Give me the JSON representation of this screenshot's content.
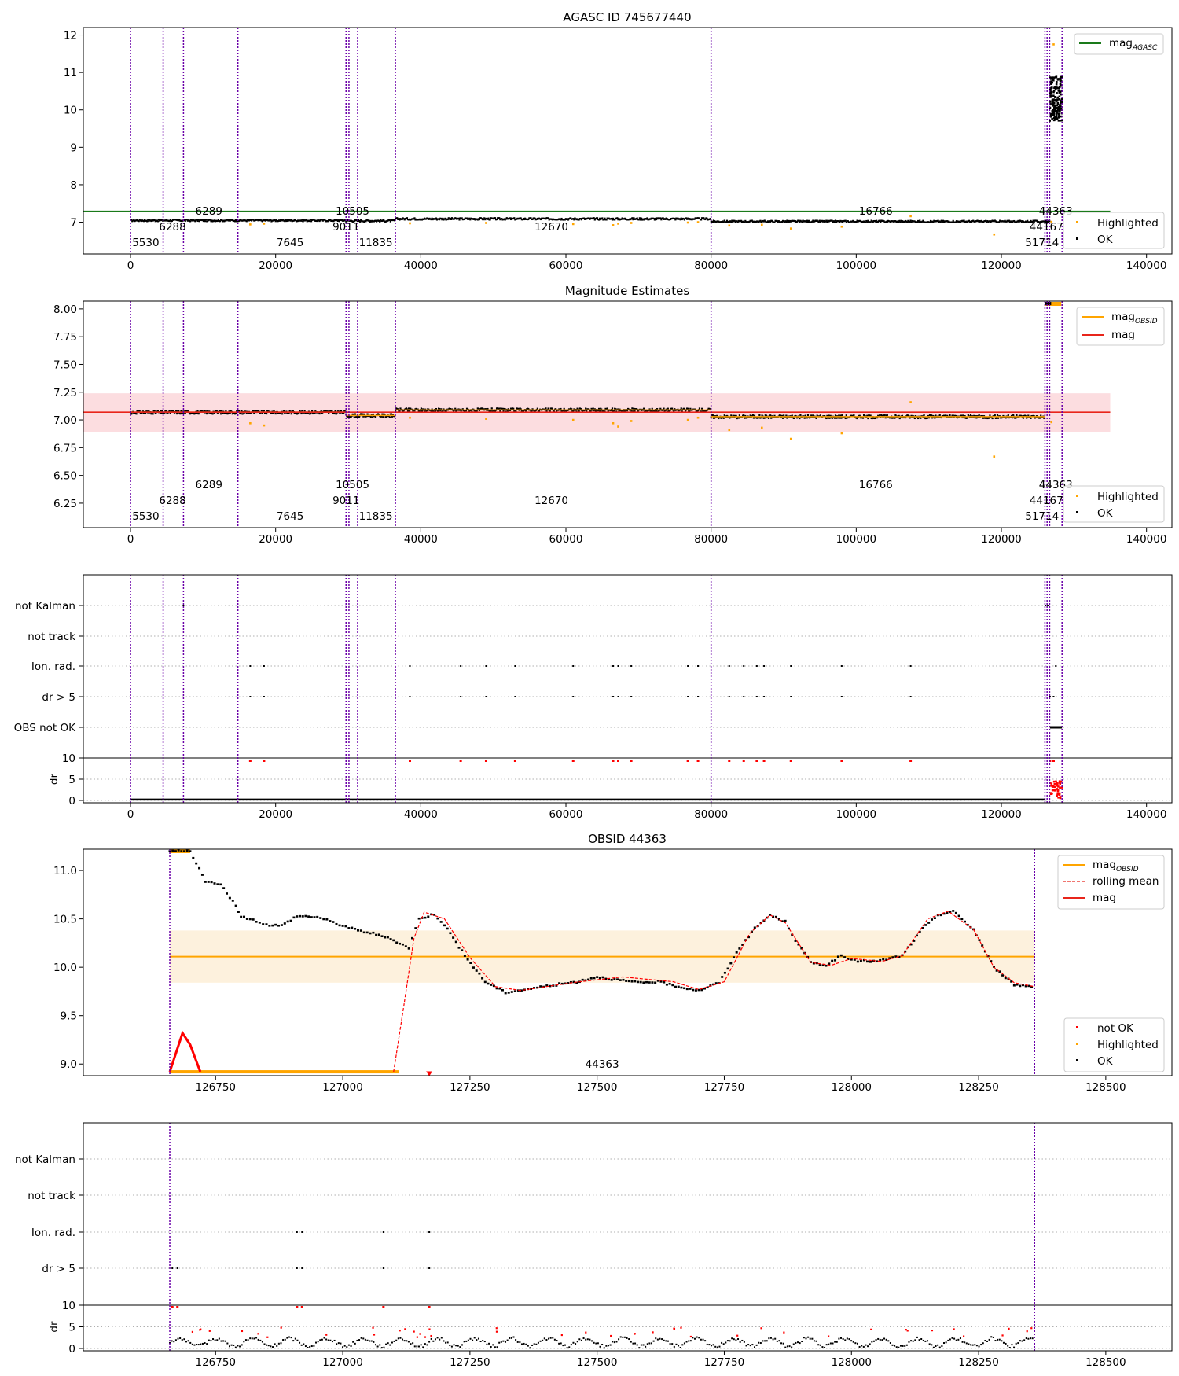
{
  "figure": {
    "background": "#ffffff"
  },
  "colors": {
    "ok": "#000000",
    "highlighted": "#ffa500",
    "not_ok": "#ff0000",
    "agasc": "#1a7a1a",
    "mag": "#e8251b",
    "band": "#fbd4d8",
    "obsid_band": "#fdefd9",
    "vline": "#6a00a8",
    "grid": "#b0b0b0"
  },
  "chart_data": [
    {
      "type": "scatter",
      "title": "AGASC ID 745677440",
      "xlim": [
        -6500,
        143500
      ],
      "ylim": [
        6.15,
        12.2
      ],
      "xticks": [
        0,
        20000,
        40000,
        60000,
        80000,
        100000,
        120000,
        140000
      ],
      "yticks": [
        7,
        8,
        9,
        10,
        11,
        12
      ],
      "obsid_boundaries": [
        0,
        4500,
        7300,
        14800,
        29700,
        30100,
        31300,
        36500,
        80000,
        126000,
        126300,
        126650,
        128360
      ],
      "obsid_labels": [
        {
          "text": "5530",
          "x": 2100,
          "row": 2
        },
        {
          "text": "6288",
          "x": 5800,
          "row": 1
        },
        {
          "text": "6289",
          "x": 10800,
          "row": 0
        },
        {
          "text": "7645",
          "x": 22000,
          "row": 2
        },
        {
          "text": "9011",
          "x": 29700,
          "row": 1
        },
        {
          "text": "10505",
          "x": 30600,
          "row": 0
        },
        {
          "text": "11835",
          "x": 33800,
          "row": 2
        },
        {
          "text": "12670",
          "x": 58000,
          "row": 1
        },
        {
          "text": "16766",
          "x": 102700,
          "row": 0
        },
        {
          "text": "44167",
          "x": 126200,
          "row": 1
        },
        {
          "text": "51714",
          "x": 125600,
          "row": 2
        },
        {
          "text": "44363",
          "x": 127500,
          "row": 0
        }
      ],
      "segments": [
        {
          "x0": 0,
          "x1": 29700,
          "y": 7.05,
          "n": 260
        },
        {
          "x0": 29700,
          "x1": 36500,
          "y": 7.04,
          "n": 60
        },
        {
          "x0": 36500,
          "x1": 80000,
          "y": 7.09,
          "n": 380
        },
        {
          "x0": 80000,
          "x1": 126000,
          "y": 7.02,
          "n": 400
        },
        {
          "x0": 126000,
          "x1": 126650,
          "y": 7.02,
          "n": 20
        }
      ],
      "cluster": {
        "x0": 126650,
        "x1": 128360,
        "y0": 9.7,
        "y1": 10.9,
        "n": 160
      },
      "highlighted_points": [
        [
          16500,
          6.94
        ],
        [
          18400,
          6.96
        ],
        [
          38500,
          6.97
        ],
        [
          49000,
          6.98
        ],
        [
          61000,
          6.95
        ],
        [
          66500,
          6.92
        ],
        [
          67200,
          6.96
        ],
        [
          69000,
          6.98
        ],
        [
          76800,
          6.99
        ],
        [
          78200,
          7.0
        ],
        [
          82500,
          6.91
        ],
        [
          87000,
          6.93
        ],
        [
          91000,
          6.83
        ],
        [
          98000,
          6.88
        ],
        [
          107500,
          7.16
        ],
        [
          119000,
          6.67
        ],
        [
          126900,
          7.01
        ],
        [
          127200,
          11.75
        ]
      ],
      "agasc_mag": 7.29,
      "legend": [
        {
          "label": "mag",
          "subscript": "AGASC",
          "kind": "line"
        }
      ],
      "legend_points": [
        {
          "label": "Highlighted"
        },
        {
          "label": "OK"
        }
      ]
    },
    {
      "type": "scatter",
      "title": "Magnitude Estimates",
      "xlim": [
        -6500,
        143500
      ],
      "ylim": [
        6.03,
        8.07
      ],
      "xticks": [
        0,
        20000,
        40000,
        60000,
        80000,
        100000,
        120000,
        140000
      ],
      "yticks": [
        6.25,
        6.5,
        6.75,
        7.0,
        7.25,
        7.5,
        7.75,
        8.0
      ],
      "mag": 7.07,
      "mag_band": [
        6.89,
        7.24
      ],
      "segments": [
        {
          "x0": 0,
          "x1": 29700,
          "y": 7.07,
          "n": 260
        },
        {
          "x0": 29700,
          "x1": 36500,
          "y": 7.04,
          "n": 60
        },
        {
          "x0": 36500,
          "x1": 80000,
          "y": 7.09,
          "n": 380
        },
        {
          "x0": 80000,
          "x1": 126000,
          "y": 7.03,
          "n": 400
        }
      ],
      "highlighted_points": [
        [
          16500,
          6.97
        ],
        [
          18400,
          6.95
        ],
        [
          38500,
          7.02
        ],
        [
          49000,
          7.01
        ],
        [
          61000,
          7.0
        ],
        [
          66500,
          6.97
        ],
        [
          67200,
          6.94
        ],
        [
          69000,
          6.99
        ],
        [
          76800,
          7.0
        ],
        [
          78200,
          7.02
        ],
        [
          82500,
          6.91
        ],
        [
          87000,
          6.93
        ],
        [
          91000,
          6.83
        ],
        [
          98000,
          6.88
        ],
        [
          107500,
          7.16
        ],
        [
          119000,
          6.67
        ],
        [
          126900,
          6.98
        ]
      ],
      "legend": [
        {
          "label": "mag",
          "subscript": "OBSID",
          "kind": "line"
        },
        {
          "label": "mag",
          "kind": "line"
        }
      ],
      "legend_points": [
        {
          "label": "Highlighted"
        },
        {
          "label": "OK"
        }
      ]
    },
    {
      "type": "scatter",
      "title": "",
      "xlim": [
        -6500,
        143500
      ],
      "xticks": [
        0,
        20000,
        40000,
        60000,
        80000,
        100000,
        120000,
        140000
      ],
      "flag_rows": [
        "not Kalman",
        "not track",
        "Ion. rad.",
        "dr > 5",
        "OBS not OK"
      ],
      "flag_points": {
        "not Kalman": [
          7300,
          126100,
          126400
        ],
        "Ion. rad.": [
          16500,
          18400,
          38500,
          45500,
          49000,
          53000,
          61000,
          66500,
          67200,
          69000,
          76800,
          78200,
          82500,
          84500,
          86300,
          87300,
          91000,
          98000,
          107500,
          127500
        ],
        "dr > 5": [
          16500,
          18400,
          38500,
          45500,
          49000,
          53000,
          61000,
          66500,
          67200,
          69000,
          76800,
          78200,
          82500,
          84500,
          86300,
          87300,
          91000,
          98000,
          107500,
          126700,
          127200
        ]
      },
      "obs_not_ok_range": [
        126700,
        128360
      ],
      "dr_ylabel": "dr",
      "dr_top_tick": "10",
      "dr_yticks": [
        "5",
        "0"
      ]
    },
    {
      "type": "line",
      "title": "OBSID 44363",
      "xlim": [
        126490,
        128630
      ],
      "ylim": [
        8.88,
        11.22
      ],
      "xticks": [
        126750,
        127000,
        127250,
        127500,
        127750,
        128000,
        128250,
        128500
      ],
      "yticks": [
        9.0,
        9.5,
        10.0,
        10.5,
        11.0
      ],
      "mag_obsid": 10.11,
      "band": [
        9.84,
        10.38
      ],
      "obsid_label": "44363",
      "mag_curve": [
        [
          126660,
          11.2
        ],
        [
          126700,
          11.2
        ],
        [
          126730,
          10.89
        ],
        [
          126760,
          10.85
        ],
        [
          126790,
          10.64
        ],
        [
          126800,
          10.52
        ],
        [
          126830,
          10.48
        ],
        [
          126850,
          10.44
        ],
        [
          126880,
          10.43
        ],
        [
          126910,
          10.53
        ],
        [
          126950,
          10.52
        ],
        [
          127000,
          10.43
        ],
        [
          127030,
          10.38
        ],
        [
          127060,
          10.35
        ],
        [
          127100,
          10.28
        ],
        [
          127130,
          10.2
        ],
        [
          127150,
          10.5
        ],
        [
          127180,
          10.55
        ],
        [
          127200,
          10.44
        ],
        [
          127240,
          10.12
        ],
        [
          127280,
          9.85
        ],
        [
          127320,
          9.74
        ],
        [
          127370,
          9.78
        ],
        [
          127420,
          9.82
        ],
        [
          127460,
          9.85
        ],
        [
          127500,
          9.9
        ],
        [
          127540,
          9.87
        ],
        [
          127580,
          9.84
        ],
        [
          127620,
          9.85
        ],
        [
          127660,
          9.8
        ],
        [
          127700,
          9.76
        ],
        [
          127740,
          9.84
        ],
        [
          127780,
          10.2
        ],
        [
          127810,
          10.4
        ],
        [
          127840,
          10.54
        ],
        [
          127870,
          10.47
        ],
        [
          127890,
          10.28
        ],
        [
          127920,
          10.05
        ],
        [
          127950,
          10.02
        ],
        [
          127980,
          10.12
        ],
        [
          128000,
          10.07
        ],
        [
          128050,
          10.06
        ],
        [
          128100,
          10.12
        ],
        [
          128140,
          10.4
        ],
        [
          128170,
          10.54
        ],
        [
          128200,
          10.58
        ],
        [
          128240,
          10.39
        ],
        [
          128280,
          10.0
        ],
        [
          128320,
          9.82
        ],
        [
          128360,
          9.8
        ]
      ],
      "rolling_mean": [
        [
          127100,
          8.92
        ],
        [
          127120,
          9.6
        ],
        [
          127140,
          10.3
        ],
        [
          127160,
          10.57
        ],
        [
          127200,
          10.5
        ],
        [
          127250,
          10.1
        ],
        [
          127300,
          9.8
        ],
        [
          127350,
          9.76
        ],
        [
          127450,
          9.84
        ],
        [
          127550,
          9.9
        ],
        [
          127650,
          9.85
        ],
        [
          127700,
          9.77
        ],
        [
          127750,
          9.85
        ],
        [
          127800,
          10.35
        ],
        [
          127840,
          10.54
        ],
        [
          127870,
          10.46
        ],
        [
          127920,
          10.05
        ],
        [
          127960,
          10.02
        ],
        [
          128000,
          10.09
        ],
        [
          128060,
          10.06
        ],
        [
          128100,
          10.12
        ],
        [
          128150,
          10.5
        ],
        [
          128190,
          10.58
        ],
        [
          128240,
          10.39
        ],
        [
          128280,
          10.0
        ],
        [
          128320,
          9.84
        ],
        [
          128360,
          9.8
        ]
      ],
      "not_ok_spike": [
        [
          126660,
          8.92
        ],
        [
          126685,
          9.32
        ],
        [
          126700,
          9.2
        ],
        [
          126720,
          8.92
        ]
      ],
      "highlighted_base": [
        126660,
        127110,
        8.92
      ],
      "not_ok_marker": [
        127170,
        8.9
      ],
      "legend": [
        {
          "label": "mag",
          "subscript": "OBSID",
          "kind": "line"
        },
        {
          "label": "rolling mean",
          "kind": "dashed"
        },
        {
          "label": "mag",
          "kind": "line"
        }
      ],
      "legend_points": [
        {
          "label": "not OK"
        },
        {
          "label": "Highlighted"
        },
        {
          "label": "OK"
        }
      ]
    },
    {
      "type": "scatter",
      "title": "",
      "xlim": [
        126490,
        128630
      ],
      "xticks": [
        126750,
        127000,
        127250,
        127500,
        127750,
        128000,
        128250,
        128500
      ],
      "flag_rows": [
        "not Kalman",
        "not track",
        "Ion. rad.",
        "dr > 5"
      ],
      "flag_points": {
        "Ion. rad.": [
          126910,
          126920,
          127080,
          127170
        ],
        "dr > 5": [
          126665,
          126675,
          126910,
          126920,
          127080,
          127170
        ]
      },
      "dr_ylabel": "dr",
      "dr_top_tick": "10",
      "dr_yticks": [
        "5",
        "0"
      ]
    }
  ]
}
